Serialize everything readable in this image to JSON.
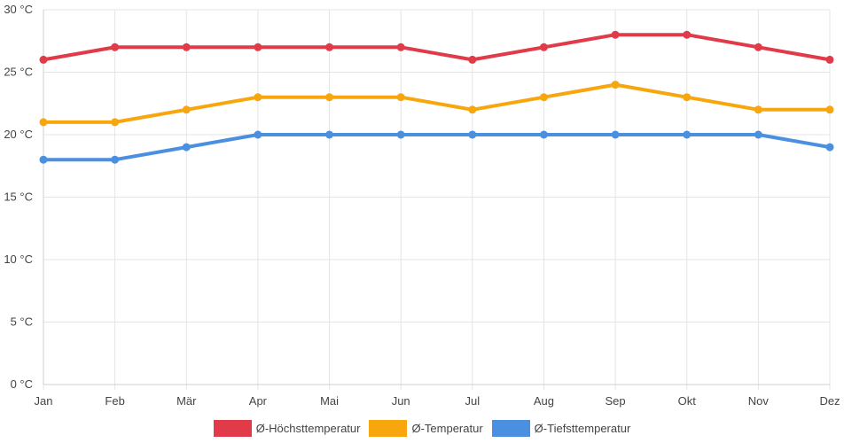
{
  "chart_data": {
    "type": "line",
    "title": "",
    "xlabel": "",
    "ylabel": "",
    "categories": [
      "Jan",
      "Feb",
      "Mär",
      "Apr",
      "Mai",
      "Jun",
      "Jul",
      "Aug",
      "Sep",
      "Okt",
      "Nov",
      "Dez"
    ],
    "ylim": [
      0,
      30
    ],
    "yticks": [
      0,
      5,
      10,
      15,
      20,
      25,
      30
    ],
    "ytick_labels": [
      "0 °C",
      "5 °C",
      "10 °C",
      "15 °C",
      "20 °C",
      "25 °C",
      "30 °C"
    ],
    "grid": true,
    "legend_position": "bottom",
    "series": [
      {
        "name": "Ø-Höchsttemperatur",
        "color": "#e13a48",
        "values": [
          26,
          27,
          27,
          27,
          27,
          27,
          26,
          27,
          28,
          28,
          27,
          26
        ]
      },
      {
        "name": "Ø-Temperatur",
        "color": "#f7a60e",
        "values": [
          21,
          21,
          22,
          23,
          23,
          23,
          22,
          23,
          24,
          23,
          22,
          22
        ]
      },
      {
        "name": "Ø-Tiefsttemperatur",
        "color": "#4a8fe0",
        "values": [
          18,
          18,
          19,
          20,
          20,
          20,
          20,
          20,
          20,
          20,
          20,
          19
        ]
      }
    ]
  },
  "legend": {
    "items": [
      {
        "label": "Ø-Höchsttemperatur",
        "color": "#e13a48"
      },
      {
        "label": "Ø-Temperatur",
        "color": "#f7a60e"
      },
      {
        "label": "Ø-Tiefsttemperatur",
        "color": "#4a8fe0"
      }
    ]
  }
}
